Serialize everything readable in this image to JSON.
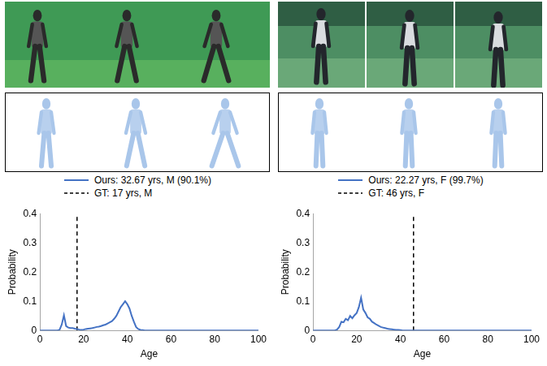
{
  "chart_data": [
    {
      "type": "line",
      "x": [
        0,
        1,
        2,
        3,
        4,
        5,
        6,
        7,
        8,
        9,
        10,
        11,
        12,
        13,
        14,
        15,
        16,
        17,
        18,
        19,
        20,
        21,
        22,
        23,
        24,
        25,
        26,
        27,
        28,
        29,
        30,
        31,
        32,
        33,
        34,
        35,
        36,
        37,
        38,
        39,
        40,
        41,
        42,
        43,
        44,
        45,
        46,
        47,
        48,
        49,
        50,
        51,
        52,
        53,
        54,
        55,
        56,
        57,
        58,
        59,
        60,
        70,
        80,
        90,
        100
      ],
      "series": [
        {
          "name": "Ours: 32.67 yrs, M (90.1%)",
          "color": "#4472c4",
          "line_style": "solid",
          "values": [
            0,
            0,
            0,
            0,
            0,
            0,
            0,
            0,
            0,
            0.002,
            0.02,
            0.052,
            0.015,
            0.01,
            0.008,
            0.008,
            0.006,
            0.005,
            0.003,
            0.002,
            0.003,
            0.005,
            0.006,
            0.007,
            0.008,
            0.01,
            0.012,
            0.013,
            0.015,
            0.018,
            0.02,
            0.024,
            0.028,
            0.032,
            0.04,
            0.05,
            0.065,
            0.08,
            0.09,
            0.1,
            0.09,
            0.075,
            0.05,
            0.03,
            0.012,
            0.005,
            0.002,
            0.001,
            0,
            0,
            0,
            0,
            0,
            0,
            0,
            0,
            0,
            0,
            0,
            0,
            0,
            0,
            0,
            0,
            0
          ]
        },
        {
          "name": "GT: 17 yrs, M",
          "color": "#000000",
          "line_style": "dashed",
          "x": [
            17,
            17
          ],
          "values": [
            0,
            0.4
          ]
        }
      ],
      "x_label": "Age",
      "y_label": "Probability",
      "xlim": [
        0,
        100
      ],
      "xticks": [
        0,
        20,
        40,
        60,
        80,
        100
      ],
      "ylim": [
        0,
        0.4
      ],
      "yticks": [
        0,
        0.1,
        0.2,
        0.3,
        0.4
      ],
      "grid": false,
      "legend": "top"
    },
    {
      "type": "line",
      "x": [
        0,
        1,
        2,
        3,
        4,
        5,
        6,
        7,
        8,
        9,
        10,
        11,
        12,
        13,
        14,
        15,
        16,
        17,
        18,
        19,
        20,
        21,
        22,
        23,
        24,
        25,
        26,
        27,
        28,
        29,
        30,
        31,
        32,
        33,
        34,
        35,
        36,
        37,
        38,
        39,
        40,
        41,
        42,
        43,
        44,
        45,
        46,
        47,
        48,
        49,
        50,
        51,
        52,
        53,
        54,
        55,
        56,
        57,
        58,
        59,
        60,
        70,
        80,
        90,
        100
      ],
      "series": [
        {
          "name": "Ours: 22.27 yrs, F (99.7%)",
          "color": "#4472c4",
          "line_style": "solid",
          "values": [
            0,
            0,
            0,
            0,
            0,
            0,
            0,
            0,
            0,
            0,
            0,
            0.003,
            0.012,
            0.03,
            0.028,
            0.04,
            0.035,
            0.05,
            0.042,
            0.052,
            0.06,
            0.08,
            0.112,
            0.072,
            0.06,
            0.045,
            0.04,
            0.03,
            0.025,
            0.02,
            0.016,
            0.012,
            0.01,
            0.008,
            0.006,
            0.005,
            0.004,
            0.003,
            0.002,
            0.002,
            0.001,
            0,
            0,
            0,
            0,
            0,
            0,
            0,
            0,
            0,
            0,
            0,
            0,
            0,
            0,
            0,
            0,
            0,
            0,
            0,
            0,
            0,
            0,
            0,
            0
          ]
        },
        {
          "name": "GT: 46 yrs, F",
          "color": "#000000",
          "line_style": "dashed",
          "x": [
            46,
            46
          ],
          "values": [
            0,
            0.4
          ]
        }
      ],
      "x_label": "Age",
      "y_label": "Probability",
      "xlim": [
        0,
        100
      ],
      "xticks": [
        0,
        20,
        40,
        60,
        80,
        100
      ],
      "ylim": [
        0,
        0.4
      ],
      "yticks": [
        0,
        0.1,
        0.2,
        0.3,
        0.4
      ],
      "grid": false,
      "legend": "top"
    }
  ]
}
